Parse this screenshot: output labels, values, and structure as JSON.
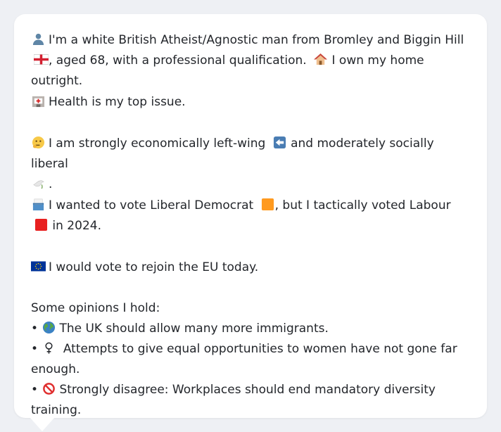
{
  "profile": {
    "intro_a": "I'm a white British Atheist/Agnostic man from Bromley and Biggin Hill",
    "intro_b": ", aged 68, with a professional qualification.",
    "intro_c": "I own my home outright.",
    "health": "Health is my top issue.",
    "economics_a": "I am strongly economically left-wing",
    "economics_b": "and moderately socially liberal",
    "economics_end": ".",
    "vote_a": "I wanted to vote Liberal Democrat",
    "vote_b": ", but I tactically voted Labour",
    "vote_c": "in 2024.",
    "eu": "I would vote to rejoin the EU today.",
    "opinions_heading": "Some opinions I hold:",
    "opinions": [
      "The UK should allow many more immigrants.",
      "Attempts to give equal opportunities to women have not gone far enough.",
      "Strongly disagree: Workplaces should end mandatory diversity training."
    ],
    "bullet": "•"
  },
  "icons": {
    "person": "person-icon",
    "flag": "england-flag-icon",
    "house": "house-icon",
    "hospital": "hospital-icon",
    "thinking": "thinking-face-icon",
    "left_arrow": "left-arrow-icon",
    "dove": "dove-icon",
    "ballot": "ballot-box-icon",
    "libdem": "orange-square-icon",
    "labour": "red-square-icon",
    "eu": "eu-flag-icon",
    "globe": "globe-icon",
    "female": "female-sign-icon",
    "prohibited": "prohibited-icon"
  },
  "colors": {
    "libdem": "#ff9a1f",
    "labour": "#e82020",
    "eu": "#003399"
  }
}
